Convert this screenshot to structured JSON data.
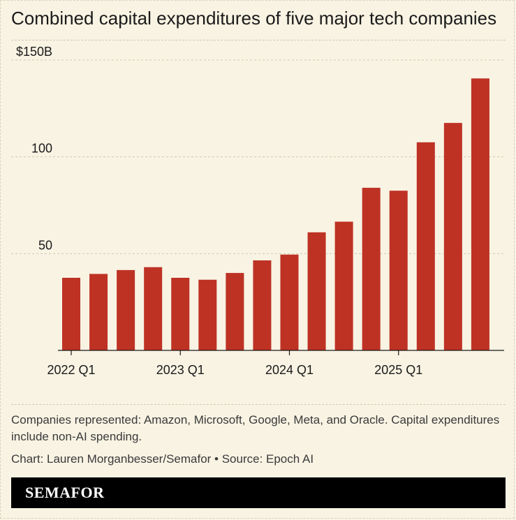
{
  "chart_data": {
    "type": "bar",
    "title": "Combined capital expenditures of five major tech companies",
    "categories": [
      "2022 Q1",
      "2022 Q2",
      "2022 Q3",
      "2022 Q4",
      "2023 Q1",
      "2023 Q2",
      "2023 Q3",
      "2023 Q4",
      "2024 Q1",
      "2024 Q2",
      "2024 Q3",
      "2024 Q4",
      "2025 Q1",
      "2025 Q2",
      "2025 Q3",
      "2025 Q4"
    ],
    "x_tick_labels": [
      "2022 Q1",
      "2023 Q1",
      "2024 Q1",
      "2025 Q1"
    ],
    "values": [
      37.5,
      39.5,
      41.5,
      43,
      37.5,
      36.5,
      40,
      46.5,
      49.5,
      61,
      66.5,
      84,
      82.5,
      107.5,
      117.5,
      140.5
    ],
    "ylim": [
      0,
      150
    ],
    "y_ticks": [
      50,
      100,
      150
    ],
    "y_tick_labels": [
      "50",
      "100",
      "$150B"
    ],
    "grid": "horizontal dashed",
    "bar_color": "#be3224"
  },
  "note": "Companies represented: Amazon, Microsoft, Google, Meta, and Oracle. Capital expenditures include non-AI spending.",
  "credit": "Chart: Lauren Morganbesser/Semafor • Source: Epoch AI",
  "brand": "SEMAFOR"
}
